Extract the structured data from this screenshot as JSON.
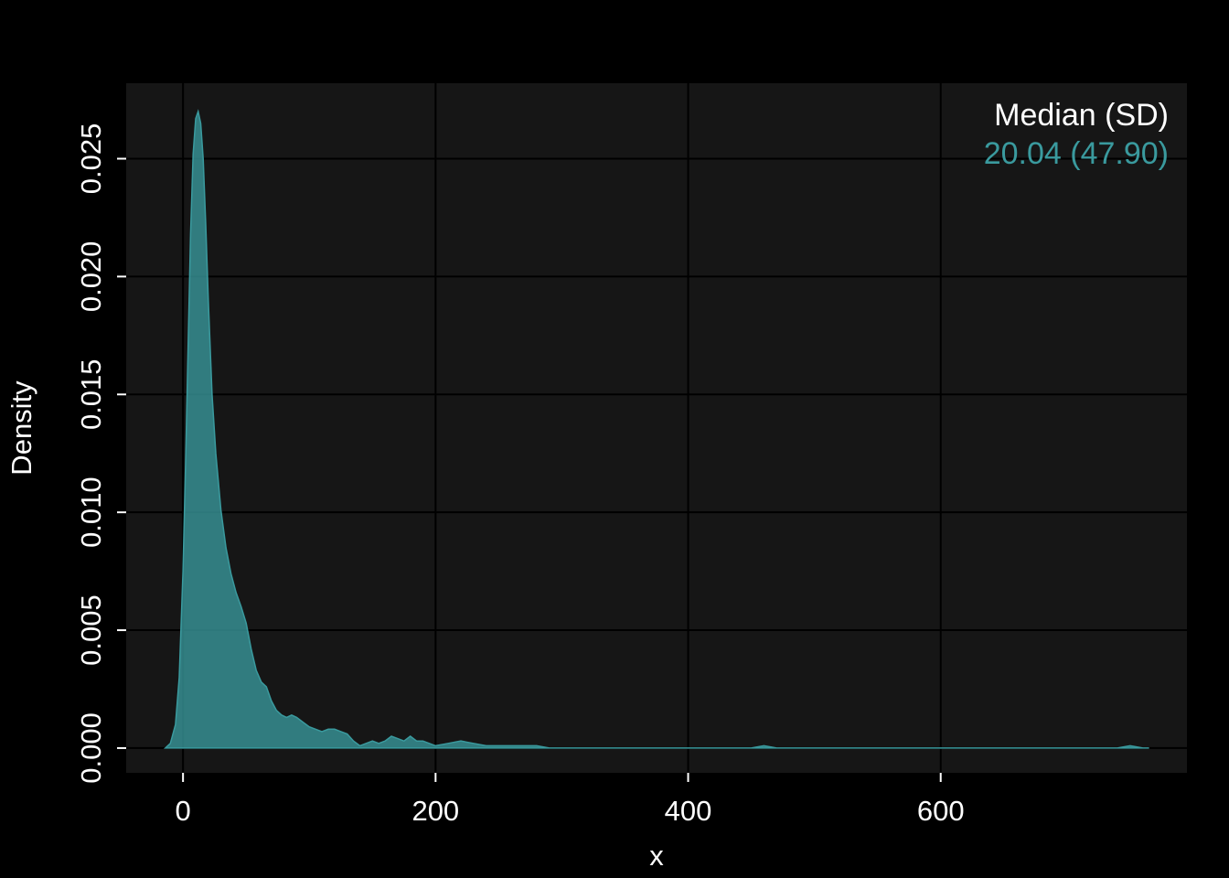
{
  "chart_data": {
    "type": "area",
    "xlabel": "x",
    "ylabel": "Density",
    "xlim": [
      -45,
      795
    ],
    "ylim": [
      -0.00105,
      0.0282
    ],
    "x_ticks": [
      0,
      200,
      400,
      600
    ],
    "x_tick_labels": [
      "0",
      "200",
      "400",
      "600"
    ],
    "y_ticks": [
      0.0,
      0.005,
      0.01,
      0.015,
      0.02,
      0.025
    ],
    "y_tick_labels": [
      "0.000",
      "0.005",
      "0.010",
      "0.015",
      "0.020",
      "0.025"
    ],
    "grid": true,
    "series": [
      {
        "color": "#3a9a9e",
        "x": [
          -14,
          -10,
          -6,
          -3,
          0,
          2,
          4,
          6,
          8,
          10,
          12,
          14,
          16,
          18,
          20,
          23,
          26,
          30,
          34,
          38,
          42,
          46,
          50,
          54,
          58,
          62,
          66,
          70,
          74,
          78,
          82,
          86,
          90,
          95,
          100,
          105,
          110,
          115,
          120,
          125,
          130,
          135,
          140,
          145,
          150,
          155,
          160,
          165,
          170,
          175,
          180,
          185,
          190,
          195,
          200,
          210,
          220,
          230,
          240,
          250,
          260,
          270,
          280,
          290,
          300,
          310,
          320,
          440,
          450,
          455,
          460,
          465,
          470,
          475,
          480,
          740,
          745,
          750,
          755,
          760,
          765
        ],
        "y": [
          0.0,
          0.0002,
          0.001,
          0.003,
          0.0075,
          0.012,
          0.017,
          0.0218,
          0.0252,
          0.0267,
          0.027,
          0.0265,
          0.025,
          0.0222,
          0.019,
          0.015,
          0.0125,
          0.0101,
          0.0085,
          0.0074,
          0.0066,
          0.006,
          0.0053,
          0.0042,
          0.0033,
          0.0028,
          0.0026,
          0.002,
          0.0016,
          0.0014,
          0.0013,
          0.0014,
          0.0013,
          0.0011,
          0.0009,
          0.0008,
          0.0007,
          0.0008,
          0.0008,
          0.0007,
          0.0006,
          0.0003,
          0.0001,
          0.0002,
          0.0003,
          0.0002,
          0.0003,
          0.0005,
          0.0004,
          0.0003,
          0.0005,
          0.0003,
          0.0003,
          0.0002,
          0.0001,
          0.0002,
          0.0003,
          0.0002,
          0.0001,
          0.0001,
          0.0001,
          0.0001,
          0.0001,
          0.0,
          0.0,
          0.0,
          0.0,
          0.0,
          0.0,
          5e-05,
          0.0001,
          5e-05,
          0.0,
          0.0,
          0.0,
          0.0,
          5e-05,
          0.0001,
          5e-05,
          0.0,
          0.0
        ]
      }
    ],
    "annotation": {
      "header": "Median (SD)",
      "value": "20.04 (47.90)",
      "placement": "top-right"
    },
    "colors": {
      "background": "#000000",
      "panel": "#161616",
      "grid": "#000000",
      "fill": "#3a9a9e",
      "text": "#ffffff",
      "accent": "#3a9a9e"
    }
  }
}
